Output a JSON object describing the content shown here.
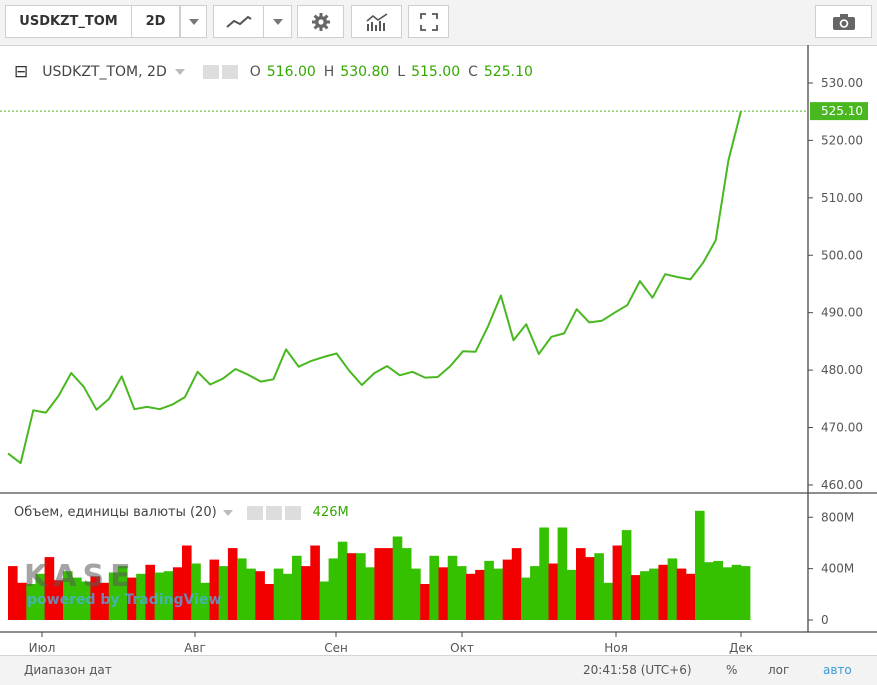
{
  "toolbar": {
    "symbol": "USDKZT_TOM",
    "interval": "2D"
  },
  "legend": {
    "title": "USDKZT_TOM, 2D",
    "o_label": "O",
    "o_value": "516.00",
    "h_label": "H",
    "h_value": "530.80",
    "l_label": "L",
    "l_value": "515.00",
    "c_label": "C",
    "c_value": "525.10"
  },
  "volume_legend": {
    "title": "Объем, единицы валюты (20)",
    "value": "426M"
  },
  "watermark": {
    "logo": "KASE",
    "powered": "powered by TradingView"
  },
  "bottom": {
    "range": "Диапазон дат",
    "time": "20:41:58 (UTC+6)",
    "percent": "%",
    "log": "лог",
    "auto": "авто"
  },
  "colors": {
    "line": "#49b820",
    "up": "#35c000",
    "down": "#f20000",
    "last_price_bg": "#49b820"
  },
  "chart_data": [
    {
      "type": "line",
      "series": [
        {
          "values": [
            465.5,
            463.8,
            473,
            472.6,
            475.5,
            479.5,
            477.1,
            473.1,
            475,
            478.9,
            473.2,
            473.6,
            473.2,
            474,
            475.3,
            479.7,
            477.5,
            478.5,
            480.2,
            479.2,
            478,
            478.4,
            483.6,
            480.6,
            481.6,
            482.3,
            482.9,
            479.9,
            477.4,
            479.5,
            480.7,
            479.1,
            479.7,
            478.7,
            478.8,
            480.7,
            483.3,
            483.2,
            487.7,
            493,
            485.2,
            488,
            482.8,
            485.8,
            486.4,
            490.6,
            488.3,
            488.6,
            490,
            491.3,
            495.5,
            492.6,
            496.7,
            496.2,
            495.8,
            498.7,
            502.6,
            516.5,
            525.1
          ]
        }
      ],
      "last_value": "525.10",
      "y_ticks": [
        "530.00",
        "525.10",
        "520.00",
        "510.00",
        "500.00",
        "490.00",
        "480.00",
        "470.00",
        "460.00"
      ],
      "ylim": [
        458.6,
        534
      ]
    },
    {
      "type": "bar",
      "series": [
        {
          "values": [
            420,
            290,
            280,
            360,
            490,
            310,
            380,
            330,
            300,
            340,
            290,
            370,
            420,
            330,
            360,
            430,
            370,
            380,
            410,
            580,
            440,
            290,
            470,
            420,
            560,
            480,
            400,
            380,
            280,
            400,
            360,
            500,
            420,
            580,
            300,
            480,
            610,
            520,
            520,
            410,
            560,
            560,
            650,
            560,
            400,
            280,
            500,
            410,
            500,
            420,
            360,
            390,
            460,
            400,
            470,
            560,
            330,
            420,
            720,
            440,
            720,
            390,
            560,
            490,
            520,
            290,
            580,
            700,
            350,
            380,
            400,
            430,
            480,
            400,
            360,
            850,
            450,
            460,
            410,
            430,
            420
          ],
          "up": [
            0,
            0,
            1,
            1,
            0,
            0,
            1,
            1,
            1,
            0,
            0,
            1,
            1,
            0,
            1,
            0,
            1,
            1,
            0,
            0,
            1,
            1,
            0,
            1,
            0,
            1,
            1,
            0,
            0,
            1,
            1,
            1,
            0,
            0,
            1,
            1,
            1,
            0,
            1,
            1,
            0,
            0,
            1,
            1,
            1,
            0,
            1,
            0,
            1,
            1,
            0,
            0,
            1,
            1,
            0,
            0,
            1,
            1,
            1,
            0,
            1,
            1,
            0,
            0,
            1,
            1,
            0,
            1,
            0,
            1,
            1,
            0,
            1,
            0,
            0,
            1,
            1,
            1,
            1,
            1,
            1
          ]
        }
      ],
      "y_ticks": [
        "800M",
        "400M",
        "0"
      ],
      "ylim": [
        0,
        950
      ]
    }
  ],
  "x_axis": {
    "ticks": [
      "Июл",
      "Авг",
      "Сен",
      "Окт",
      "Ноя",
      "Дек"
    ]
  }
}
